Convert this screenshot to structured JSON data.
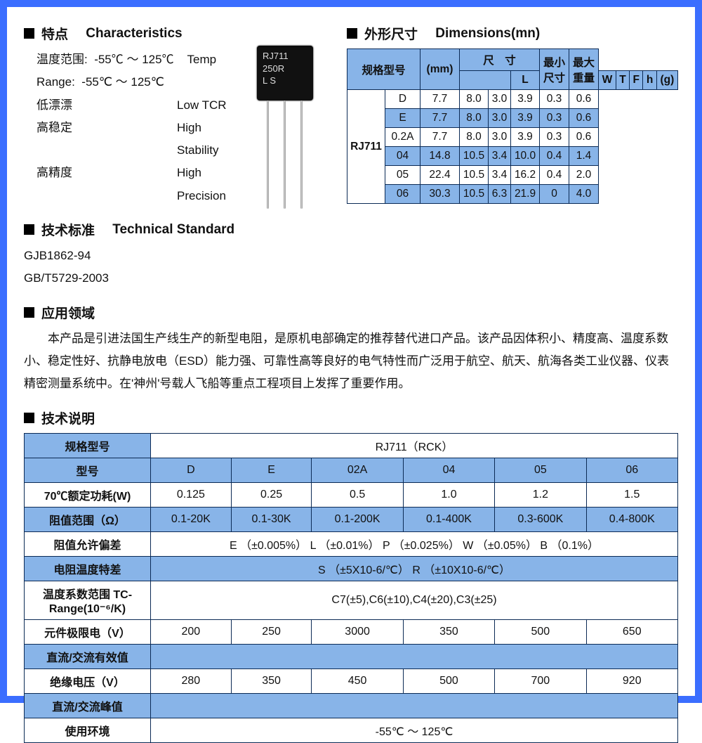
{
  "colors": {
    "frame": "#3b6eff",
    "table_border": "#0b2a55",
    "table_blue": "#88b4e8",
    "table_white": "#ffffff",
    "text": "#111111"
  },
  "sections": {
    "characteristics": {
      "title_cn": "特点",
      "title_en": "Characteristics"
    },
    "technical_standard": {
      "title_cn": "技术标准",
      "title_en": "Technical Standard"
    },
    "dimensions": {
      "title_cn": "外形尺寸",
      "title_en": "Dimensions(mn)"
    },
    "application": {
      "title_cn": "应用领域"
    },
    "technical_desc": {
      "title_cn": "技术说明"
    }
  },
  "characteristics": {
    "temp_label_cn": "温度范围:",
    "temp_value_cn": "-55℃ ～ 125℃",
    "temp_label_en": "Temp Range:",
    "temp_value_en": "-55℃ ～ 125℃",
    "rows": [
      {
        "cn": "低漂漂",
        "en": "Low TCR"
      },
      {
        "cn": "高稳定",
        "en": "High Stability"
      },
      {
        "cn": "高精度",
        "en": "High Precision"
      }
    ]
  },
  "standards": {
    "l1": "GJB1862-94",
    "l2": "GB/T5729-2003"
  },
  "component": {
    "line1": "RJ711",
    "line2": "250R",
    "line3": "L S"
  },
  "dimensions_table": {
    "header": {
      "spec": "规格型号",
      "mm": "(mm)",
      "size_cn": "尺　寸",
      "min_h": "最小尺寸",
      "max_w": "最大重量",
      "cols": [
        "L",
        "W",
        "T",
        "F",
        "h",
        "(g)"
      ]
    },
    "model": "RJ711",
    "rows": [
      {
        "k": "D",
        "v": [
          "7.7",
          "8.0",
          "3.0",
          "3.9",
          "0.3",
          "0.6"
        ],
        "alt": false
      },
      {
        "k": "E",
        "v": [
          "7.7",
          "8.0",
          "3.0",
          "3.9",
          "0.3",
          "0.6"
        ],
        "alt": true
      },
      {
        "k": "0.2A",
        "v": [
          "7.7",
          "8.0",
          "3.0",
          "3.9",
          "0.3",
          "0.6"
        ],
        "alt": false
      },
      {
        "k": "04",
        "v": [
          "14.8",
          "10.5",
          "3.4",
          "10.0",
          "0.4",
          "1.4"
        ],
        "alt": true
      },
      {
        "k": "05",
        "v": [
          "22.4",
          "10.5",
          "3.4",
          "16.2",
          "0.4",
          "2.0"
        ],
        "alt": false
      },
      {
        "k": "06",
        "v": [
          "30.3",
          "10.5",
          "6.3",
          "21.9",
          "0",
          "4.0"
        ],
        "alt": true
      }
    ]
  },
  "application_text": "本产品是引进法国生产线生产的新型电阻，是原机电部确定的推荐替代进口产品。该产品因体积小、精度高、温度系数小、稳定性好、抗静电放电（ESD）能力强、可靠性高等良好的电气特性而广泛用于航空、航天、航海各类工业仪器、仪表精密测量系统中。在'神州'号载人飞船等重点工程项目上发挥了重要作用。",
  "tech_table": {
    "spec_header": "规格型号",
    "spec_value": "RJ711（RCK）",
    "model_label": "型号",
    "models": [
      "D",
      "E",
      "02A",
      "04",
      "05",
      "06"
    ],
    "power_label": "70℃额定功耗(W)",
    "power": [
      "0.125",
      "0.25",
      "0.5",
      "1.0",
      "1.2",
      "1.5"
    ],
    "res_label": "阻值范围（Ω）",
    "res": [
      "0.1-20K",
      "0.1-30K",
      "0.1-200K",
      "0.1-400K",
      "0.3-600K",
      "0.4-800K"
    ],
    "tol_label": "阻值允许偏差",
    "tol_value": "E （±0.005%） L （±0.01%） P （±0.025%） W （±0.05%） B （0.1%）",
    "tcr_label": "电阻温度特差",
    "tcr_value": "S （±5X10-6/℃） R （±10X10-6/℃）",
    "tcrange_label": "温度系数范围 TC-Range(10⁻⁶/K)",
    "tcrange_value": "C7(±5),C6(±10),C4(±20),C3(±25)",
    "vlim_label": "元件极限电（V）",
    "vlim": [
      "200",
      "250",
      "3000",
      "350",
      "500",
      "650"
    ],
    "dcac_rms": "直流/交流有效值",
    "vins_label": "绝缘电压（V）",
    "vins": [
      "280",
      "350",
      "450",
      "500",
      "700",
      "920"
    ],
    "dcac_peak": "直流/交流峰值",
    "env_label": "使用环境",
    "env_value": "-55℃ ～ 125℃"
  }
}
